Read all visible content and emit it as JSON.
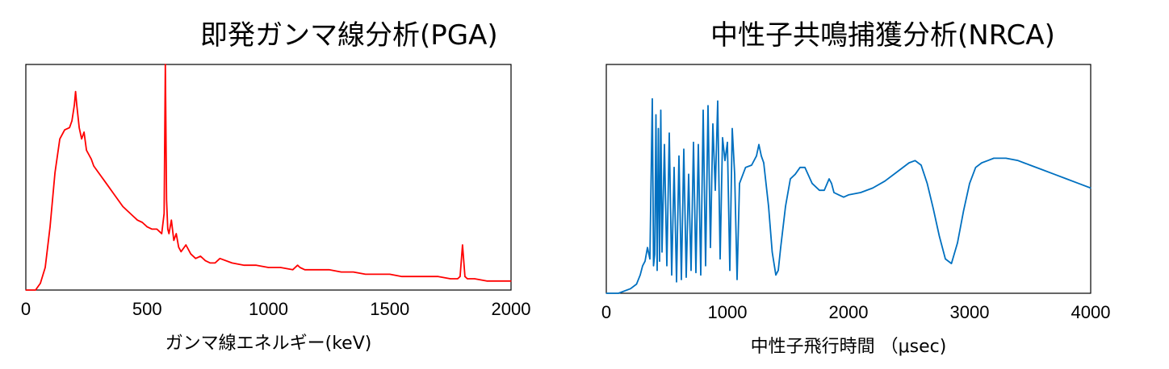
{
  "chart_data": [
    {
      "type": "line",
      "title": "即発ガンマ線分析(PGA)",
      "xlabel": "ガンマ線エネルギー(keV)",
      "ylabel": "",
      "xlim": [
        0,
        2000
      ],
      "xticks": [
        "0",
        "500",
        "1000",
        "1500",
        "2000"
      ],
      "ylim": [
        0,
        100
      ],
      "y_tick_labels": false,
      "grid": false,
      "legend": "none",
      "color": "#ff0000",
      "series": [
        {
          "x": [
            0,
            40,
            60,
            80,
            100,
            120,
            140,
            160,
            180,
            190,
            200,
            205,
            210,
            215,
            220,
            230,
            240,
            250,
            260,
            270,
            280,
            300,
            320,
            340,
            360,
            380,
            400,
            420,
            440,
            460,
            480,
            500,
            520,
            540,
            550,
            560,
            570,
            575,
            580,
            585,
            590,
            600,
            610,
            620,
            630,
            640,
            660,
            680,
            700,
            720,
            740,
            760,
            780,
            800,
            850,
            900,
            950,
            1000,
            1050,
            1100,
            1120,
            1130,
            1150,
            1200,
            1250,
            1300,
            1350,
            1400,
            1450,
            1500,
            1550,
            1600,
            1650,
            1700,
            1750,
            1780,
            1790,
            1800,
            1810,
            1820,
            1850,
            1900,
            1950,
            2000
          ],
          "y": [
            0,
            0,
            3,
            10,
            28,
            52,
            67,
            71,
            72,
            75,
            82,
            88,
            82,
            77,
            72,
            67,
            70,
            62,
            60,
            58,
            55,
            52,
            49,
            46,
            43,
            40,
            37,
            35,
            33,
            31,
            30,
            28,
            27,
            27,
            26,
            25,
            34,
            100,
            40,
            27,
            25,
            31,
            22,
            25,
            19,
            17,
            20,
            16,
            14,
            15,
            13,
            12,
            12,
            14,
            12,
            11,
            11,
            10,
            10,
            9,
            11,
            10,
            9,
            9,
            9,
            8,
            8,
            7,
            7,
            7,
            6,
            6,
            6,
            6,
            5,
            5,
            6,
            20,
            6,
            5,
            5,
            4,
            4,
            4
          ]
        }
      ]
    },
    {
      "type": "line",
      "title": "中性子共鳴捕獲分析(NRCA)",
      "xlabel": "中性子飛行時間 （μsec)",
      "ylabel": "",
      "xlim": [
        0,
        4000
      ],
      "xticks": [
        "0",
        "1000",
        "2000",
        "3000",
        "4000"
      ],
      "ylim": [
        0,
        100
      ],
      "y_tick_labels": false,
      "grid": false,
      "legend": "none",
      "color": "#0070c0",
      "series": [
        {
          "x": [
            0,
            100,
            200,
            250,
            280,
            300,
            320,
            340,
            360,
            380,
            390,
            400,
            410,
            420,
            430,
            440,
            450,
            460,
            480,
            500,
            520,
            540,
            560,
            580,
            600,
            620,
            640,
            660,
            680,
            700,
            720,
            740,
            760,
            780,
            800,
            820,
            840,
            860,
            880,
            900,
            920,
            940,
            960,
            980,
            1000,
            1020,
            1040,
            1060,
            1080,
            1100,
            1150,
            1200,
            1240,
            1260,
            1280,
            1300,
            1340,
            1370,
            1400,
            1420,
            1440,
            1480,
            1520,
            1560,
            1600,
            1640,
            1700,
            1760,
            1800,
            1840,
            1860,
            1880,
            1920,
            1960,
            2000,
            2100,
            2200,
            2300,
            2400,
            2500,
            2550,
            2600,
            2650,
            2700,
            2750,
            2800,
            2850,
            2900,
            2950,
            3000,
            3050,
            3100,
            3150,
            3200,
            3250,
            3300,
            3400,
            3500,
            3600,
            3700,
            3800,
            3900,
            4000
          ],
          "y": [
            0,
            0,
            2,
            4,
            8,
            12,
            14,
            20,
            15,
            85,
            12,
            17,
            78,
            10,
            72,
            14,
            80,
            18,
            65,
            12,
            70,
            8,
            55,
            5,
            60,
            6,
            63,
            7,
            52,
            10,
            66,
            9,
            65,
            8,
            80,
            12,
            82,
            20,
            74,
            45,
            84,
            15,
            68,
            58,
            66,
            10,
            72,
            52,
            6,
            48,
            55,
            56,
            60,
            65,
            60,
            57,
            38,
            18,
            8,
            10,
            20,
            38,
            50,
            52,
            55,
            55,
            48,
            45,
            45,
            50,
            48,
            44,
            43,
            42,
            43,
            44,
            46,
            49,
            53,
            57,
            58,
            56,
            48,
            37,
            25,
            15,
            13,
            22,
            36,
            48,
            55,
            57,
            58,
            59,
            59,
            59,
            58,
            56,
            54,
            52,
            50,
            48,
            46
          ]
        }
      ]
    }
  ]
}
